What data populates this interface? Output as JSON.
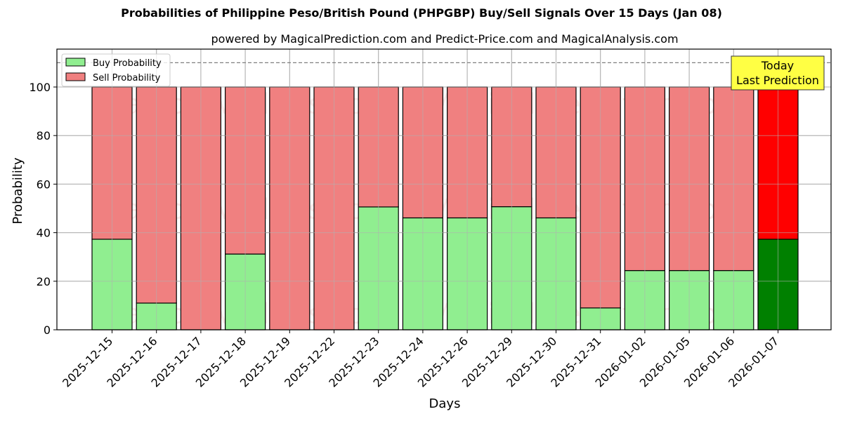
{
  "chart_data": {
    "type": "bar",
    "stacked": true,
    "title": "Probabilities of Philippine Peso/British Pound (PHPGBP) Buy/Sell Signals Over 15 Days (Jan 08)",
    "subtitle": "powered by MagicalPrediction.com and Predict-Price.com and MagicalAnalysis.com",
    "xlabel": "Days",
    "ylabel": "Probability",
    "ylim": [
      0,
      115
    ],
    "yticks": [
      0,
      20,
      40,
      60,
      80,
      100
    ],
    "grid": true,
    "legend_position": "upper left",
    "categories": [
      "2025-12-15",
      "2025-12-16",
      "2025-12-17",
      "2025-12-18",
      "2025-12-19",
      "2025-12-22",
      "2025-12-23",
      "2025-12-24",
      "2025-12-26",
      "2025-12-29",
      "2025-12-30",
      "2025-12-31",
      "2026-01-02",
      "2026-01-05",
      "2026-01-06",
      "2026-01-07"
    ],
    "series": [
      {
        "name": "Buy Probability",
        "color": "#90ee90",
        "values": [
          37.3,
          11.0,
          0,
          31.2,
          0,
          0,
          50.6,
          46.1,
          46.1,
          50.7,
          46.1,
          9.0,
          24.4,
          24.4,
          24.4,
          37.3
        ]
      },
      {
        "name": "Sell Probability",
        "color": "#f08080",
        "values": [
          62.7,
          89.0,
          100,
          68.8,
          100,
          100,
          49.4,
          53.9,
          53.9,
          49.3,
          53.9,
          91.0,
          75.6,
          75.6,
          75.6,
          62.7
        ]
      }
    ],
    "highlight": {
      "index": 15,
      "buy_color": "#008000",
      "sell_color": "#ff0000"
    },
    "reference_line": {
      "y": 110,
      "style": "dashed",
      "color": "#808080"
    },
    "annotation": {
      "line1": "Today",
      "line2": "Last Prediction",
      "background": "#ffff44"
    },
    "watermarks": [
      "MagicalAnalysis.com",
      "MagicalPrediction.com"
    ]
  }
}
